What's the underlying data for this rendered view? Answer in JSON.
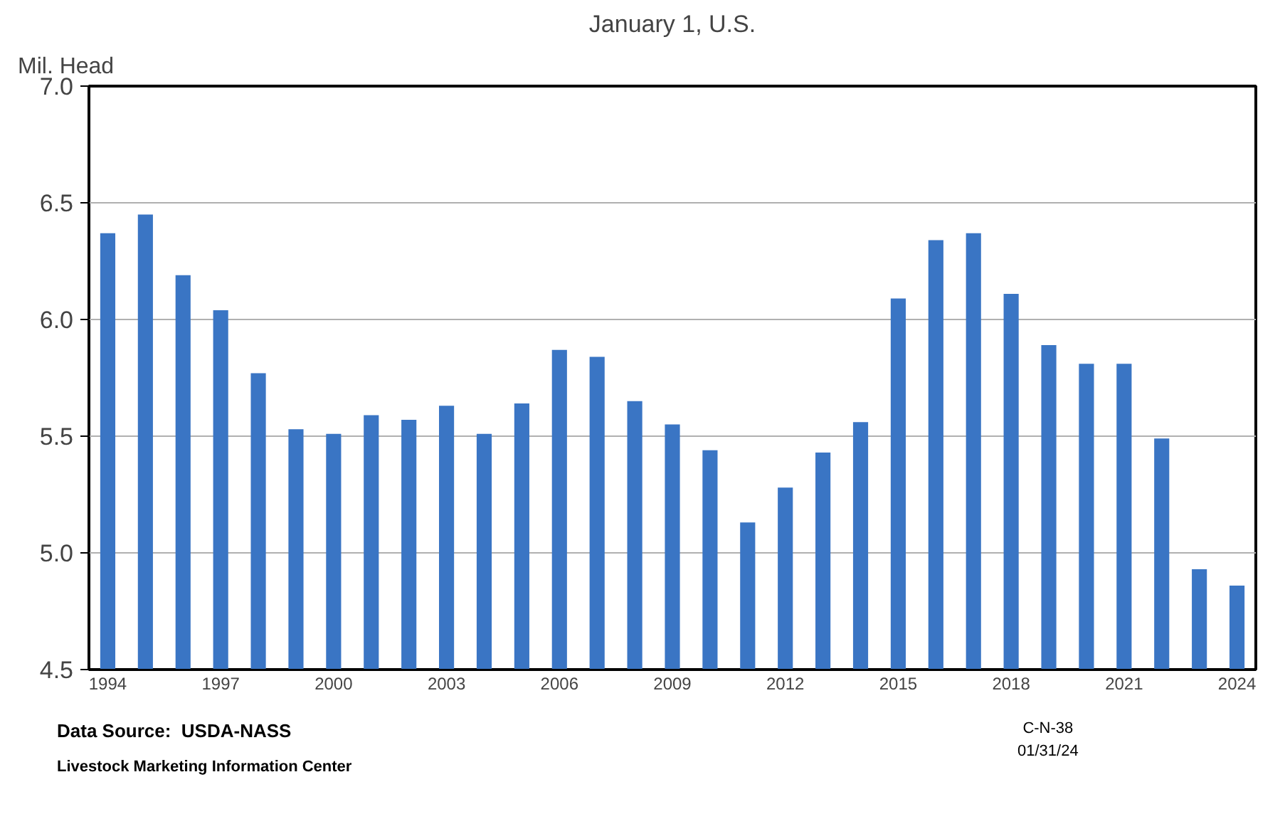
{
  "chart_data": {
    "type": "bar",
    "title": "January 1, U.S.",
    "ylabel": "Mil. Head",
    "categories": [
      "1994",
      null,
      null,
      "1997",
      null,
      null,
      "2000",
      null,
      null,
      "2003",
      null,
      null,
      "2006",
      null,
      null,
      "2009",
      null,
      null,
      "2012",
      null,
      null,
      "2015",
      null,
      null,
      "2018",
      null,
      null,
      "2021",
      null,
      null,
      "2024"
    ],
    "values": [
      6.37,
      6.45,
      6.19,
      6.04,
      5.77,
      5.53,
      5.51,
      5.59,
      5.57,
      5.63,
      5.51,
      5.64,
      5.87,
      5.84,
      5.65,
      5.55,
      5.44,
      5.13,
      5.28,
      5.43,
      5.56,
      6.09,
      6.34,
      6.37,
      6.11,
      5.89,
      5.81,
      5.81,
      5.49,
      4.93,
      4.86
    ],
    "color": "#3a75c4",
    "ylim": [
      4.5,
      7.0
    ],
    "yticks": [
      {
        "value": 4.5,
        "label": "4.5"
      },
      {
        "value": 5.0,
        "label": "5.0"
      },
      {
        "value": 5.5,
        "label": "5.5"
      },
      {
        "value": 6.0,
        "label": "6.0"
      },
      {
        "value": 6.5,
        "label": "6.5"
      },
      {
        "value": 7.0,
        "label": "7.0"
      }
    ],
    "grid": "y",
    "annotations": [
      "Data Source:  USDA-NASS",
      "Livestock Marketing Information Center",
      "C-N-38",
      "01/31/24"
    ]
  }
}
